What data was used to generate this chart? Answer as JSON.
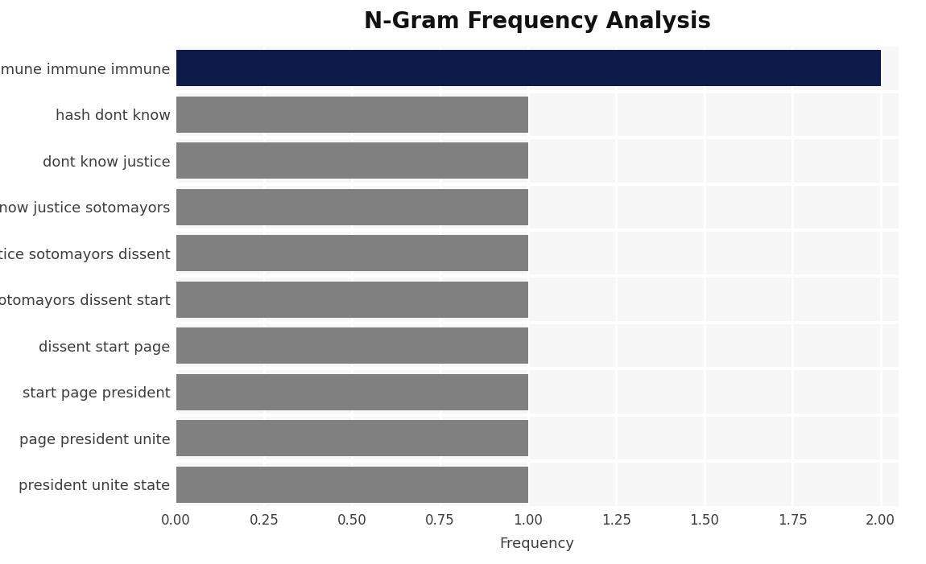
{
  "title": "N-Gram Frequency Analysis",
  "xlabel": "Frequency",
  "categories": [
    "president unite state",
    "page president unite",
    "start page president",
    "dissent start page",
    "sotomayors dissent start",
    "justice sotomayors dissent",
    "know justice sotomayors",
    "dont know justice",
    "hash dont know",
    "immune immune immune"
  ],
  "values": [
    1,
    1,
    1,
    1,
    1,
    1,
    1,
    1,
    1,
    2
  ],
  "bar_colors": [
    "#808080",
    "#808080",
    "#808080",
    "#808080",
    "#808080",
    "#808080",
    "#808080",
    "#808080",
    "#808080",
    "#0d1b4b"
  ],
  "xlim": [
    0,
    2.05
  ],
  "xticks": [
    0.0,
    0.25,
    0.5,
    0.75,
    1.0,
    1.25,
    1.5,
    1.75,
    2.0
  ],
  "xtick_labels": [
    "0.00",
    "0.25",
    "0.50",
    "0.75",
    "1.00",
    "1.25",
    "1.50",
    "1.75",
    "2.00"
  ],
  "plot_bg_color": "#f7f7f7",
  "fig_bg_color": "#ffffff",
  "title_fontsize": 20,
  "label_fontsize": 13,
  "tick_fontsize": 12,
  "bar_height": 0.78,
  "grid_color": "#ffffff",
  "separator_color": "#ffffff",
  "separator_linewidth": 3.0,
  "label_color": "#3d3d3d"
}
